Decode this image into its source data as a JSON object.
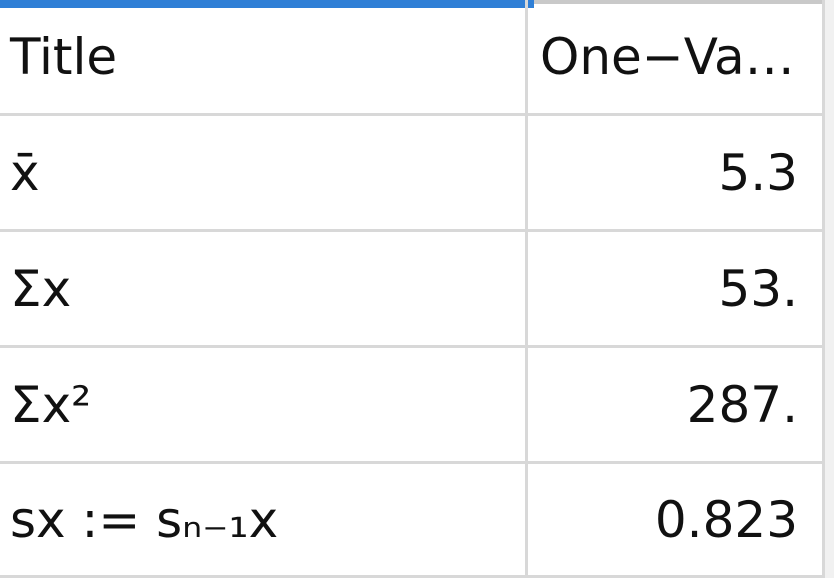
{
  "header": {
    "title_label": "Title",
    "title_value": "One−Va…"
  },
  "rows": [
    {
      "label": "x̄",
      "value": "5.3"
    },
    {
      "label": "Σx",
      "value": "53."
    },
    {
      "label": "Σx²",
      "value": "287."
    },
    {
      "label": "sx := sₙ₋₁x",
      "value": "0.823"
    }
  ],
  "colors": {
    "accent": "#2f7fd6",
    "gridline": "#d8d8d8",
    "background": "#ffffff"
  }
}
